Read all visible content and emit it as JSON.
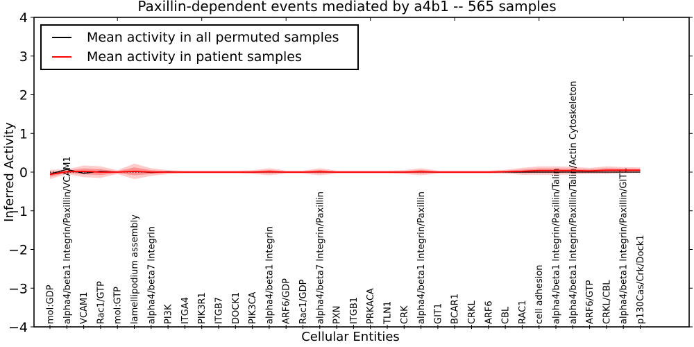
{
  "title": "Paxillin-dependent events mediated by a4b1 -- 565 samples",
  "legend": {
    "position": "upper left",
    "entries": [
      {
        "label": "Mean activity in all permuted samples",
        "color": "#000000"
      },
      {
        "label": "Mean activity in patient samples",
        "color": "#ff0000"
      }
    ]
  },
  "chart_data": {
    "type": "line",
    "title": "Paxillin-dependent events mediated by a4b1 -- 565 samples",
    "xlabel": "Cellular Entities",
    "ylabel": "Inferred Activity",
    "ylim": [
      -4,
      4
    ],
    "yticks": [
      4,
      3,
      2,
      1,
      0,
      -1,
      -2,
      -3,
      -4
    ],
    "top_tick_indices": [
      4,
      9,
      14,
      19,
      24,
      29,
      34
    ],
    "grid": false,
    "legend_position": "upper left",
    "band_color": "#ff0000",
    "band_opacity": 0.2,
    "categories": [
      "mol:GDP",
      "alpha4/beta1 Integrin/Paxillin/VCAM1",
      "VCAM1",
      "Rac1/GTP",
      "mol:GTP",
      "lamellipodium assembly",
      "alpha4/beta7 Integrin",
      "PI3K",
      "ITGA4",
      "PIK3R1",
      "ITGB7",
      "DOCK1",
      "PIK3CA",
      "alpha4/beta1 Integrin",
      "ARF6/GDP",
      "Rac1/GDP",
      "alpha4/beta7 Integrin/Paxillin",
      "PXN",
      "ITGB1",
      "PRKACA",
      "TLN1",
      "CRK",
      "alpha4/beta1 Integrin/Paxillin",
      "GIT1",
      "BCAR1",
      "CRKL",
      "ARF6",
      "CBL",
      "RAC1",
      "cell adhesion",
      "alpha4/beta1 Integrin/Paxillin/Talin",
      "alpha4/beta1 Integrin/Paxillin/Talin/Actin Cytoskeleton",
      "ARF6/GTP",
      "CRKL/CBL",
      "alpha4/beta1 Integrin/Paxillin/GIT1",
      "p130Cas/Crk/Dock1"
    ],
    "series": [
      {
        "name": "Mean activity in all permuted samples",
        "color": "#000000",
        "line_style": "solid",
        "values": [
          -0.05,
          0.07,
          -0.03,
          0.02,
          0,
          0.02,
          -0.01,
          0.01,
          0,
          0,
          0,
          0,
          0,
          0,
          0,
          0,
          0,
          0,
          0,
          0,
          0,
          0,
          0,
          0,
          0,
          0,
          0,
          0,
          0,
          0,
          0,
          0,
          0,
          0,
          0,
          0
        ]
      },
      {
        "name": "Mean activity in patient samples",
        "color": "#ff0000",
        "line_style": "solid",
        "values": [
          -0.06,
          0.01,
          0.02,
          0,
          0,
          0.02,
          0,
          0,
          0,
          0,
          0,
          0,
          0,
          0.01,
          0,
          0,
          0.01,
          0,
          0,
          0,
          0,
          0,
          0.01,
          0,
          0,
          0,
          0,
          0.01,
          0.02,
          0.04,
          0.04,
          0.04,
          0.03,
          0.05,
          0.05,
          0.05
        ],
        "band_halfwidth": [
          0.12,
          0.06,
          0.15,
          0.15,
          0.05,
          0.2,
          0.1,
          0.05,
          0.04,
          0.04,
          0.04,
          0.04,
          0.05,
          0.09,
          0.04,
          0.04,
          0.09,
          0.04,
          0.04,
          0.04,
          0.04,
          0.05,
          0.09,
          0.04,
          0.04,
          0.04,
          0.04,
          0.05,
          0.09,
          0.11,
          0.11,
          0.1,
          0.08,
          0.1,
          0.08,
          0.07
        ]
      }
    ],
    "zero_line": {
      "value": 0,
      "style": "dotted",
      "color": "#000000"
    }
  }
}
